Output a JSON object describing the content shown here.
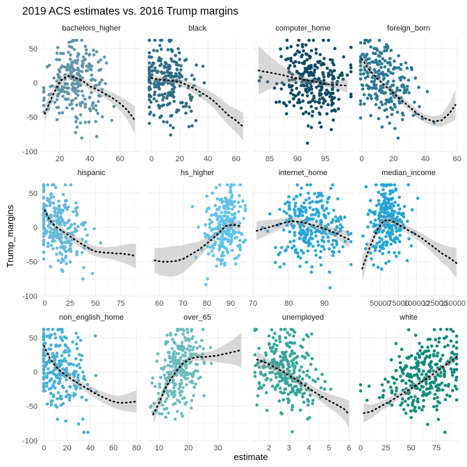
{
  "chart_data": {
    "type": "scatter",
    "title": "2019 ACS estimates vs. 2016 Trump margins",
    "xlabel": "estimate",
    "ylabel": "Trump_margins",
    "ylim": [
      -100,
      65
    ],
    "yticks": [
      -100,
      -50,
      0,
      50
    ],
    "layout": "facet grid 4 columns x 3 rows",
    "grid": true,
    "smooth": "loess curve (dotted black) with grey confidence band",
    "panels": [
      {
        "name": "bachelors_higher",
        "color": "#5f95ab",
        "xlim": [
          8,
          74
        ],
        "xticks": [
          20,
          40,
          60
        ],
        "trend": [
          [
            10,
            -45
          ],
          [
            15,
            -20
          ],
          [
            20,
            2
          ],
          [
            25,
            10
          ],
          [
            30,
            8
          ],
          [
            35,
            3
          ],
          [
            40,
            -5
          ],
          [
            45,
            -10
          ],
          [
            50,
            -16
          ],
          [
            55,
            -22
          ],
          [
            60,
            -30
          ],
          [
            65,
            -40
          ],
          [
            70,
            -55
          ]
        ],
        "band": [
          12,
          10,
          6,
          5,
          5,
          5,
          5,
          5,
          6,
          8,
          10,
          14,
          20
        ],
        "cloud": {
          "center": [
            30,
            8
          ],
          "spread": [
            10,
            28
          ],
          "n": 240
        }
      },
      {
        "name": "black",
        "color": "#2d6e88",
        "xlim": [
          -3,
          68
        ],
        "xticks": [
          0,
          20,
          40,
          60
        ],
        "trend": [
          [
            0,
            7
          ],
          [
            5,
            5
          ],
          [
            10,
            4
          ],
          [
            15,
            3
          ],
          [
            20,
            1
          ],
          [
            25,
            -3
          ],
          [
            30,
            -8
          ],
          [
            35,
            -14
          ],
          [
            40,
            -20
          ],
          [
            45,
            -28
          ],
          [
            50,
            -38
          ],
          [
            55,
            -48
          ],
          [
            60,
            -55
          ],
          [
            65,
            -64
          ]
        ],
        "band": [
          5,
          4,
          4,
          4,
          5,
          6,
          7,
          8,
          9,
          11,
          13,
          15,
          17,
          20
        ],
        "cloud": {
          "center": [
            10,
            5
          ],
          "spread": [
            10,
            30
          ],
          "n": 230
        }
      },
      {
        "name": "computer_home",
        "color": "#0c4a63",
        "xlim": [
          82,
          100
        ],
        "xticks": [
          85,
          90,
          95
        ],
        "trend": [
          [
            83,
            18
          ],
          [
            85,
            15
          ],
          [
            87,
            12
          ],
          [
            89,
            8
          ],
          [
            91,
            5
          ],
          [
            93,
            2
          ],
          [
            95,
            -2
          ],
          [
            97,
            -3
          ],
          [
            99,
            -4
          ]
        ],
        "band": [
          35,
          24,
          14,
          8,
          5,
          4,
          4,
          6,
          10
        ],
        "cloud": {
          "center": [
            92.5,
            2
          ],
          "spread": [
            3,
            30
          ],
          "n": 280
        }
      },
      {
        "name": "foreign_born",
        "color": "#2a7896",
        "xlim": [
          -2,
          61
        ],
        "xticks": [
          0,
          20,
          40,
          60
        ],
        "trend": [
          [
            0,
            35
          ],
          [
            5,
            18
          ],
          [
            10,
            6
          ],
          [
            15,
            -5
          ],
          [
            20,
            -15
          ],
          [
            25,
            -25
          ],
          [
            30,
            -35
          ],
          [
            35,
            -45
          ],
          [
            40,
            -52
          ],
          [
            45,
            -56
          ],
          [
            50,
            -55
          ],
          [
            55,
            -45
          ],
          [
            59,
            -32
          ]
        ],
        "band": [
          8,
          5,
          4,
          4,
          5,
          5,
          6,
          6,
          6,
          7,
          9,
          14,
          22
        ],
        "cloud": {
          "center": [
            12,
            10
          ],
          "spread": [
            10,
            28
          ],
          "n": 230
        }
      },
      {
        "name": "hispanic",
        "color": "#66b9dd",
        "xlim": [
          -3,
          95
        ],
        "xticks": [
          0,
          25,
          50,
          75
        ],
        "trend": [
          [
            0,
            25
          ],
          [
            5,
            10
          ],
          [
            10,
            2
          ],
          [
            15,
            -3
          ],
          [
            20,
            -8
          ],
          [
            25,
            -13
          ],
          [
            30,
            -18
          ],
          [
            35,
            -23
          ],
          [
            40,
            -27
          ],
          [
            45,
            -32
          ],
          [
            50,
            -35
          ],
          [
            55,
            -36
          ],
          [
            60,
            -37
          ],
          [
            65,
            -37
          ],
          [
            70,
            -38
          ],
          [
            75,
            -38
          ],
          [
            80,
            -39
          ],
          [
            85,
            -40
          ],
          [
            90,
            -42
          ]
        ],
        "band": [
          6,
          4,
          4,
          4,
          5,
          5,
          6,
          6,
          6,
          7,
          7,
          8,
          8,
          9,
          10,
          12,
          14,
          16,
          18
        ],
        "cloud": {
          "center": [
            12,
            10
          ],
          "spread": [
            14,
            30
          ],
          "n": 250
        }
      },
      {
        "name": "hs_higher",
        "color": "#5ec2eb",
        "xlim": [
          55,
          97
        ],
        "xticks": [
          60,
          70,
          80,
          90
        ],
        "trend": [
          [
            58,
            -48
          ],
          [
            61,
            -50
          ],
          [
            64,
            -50
          ],
          [
            67,
            -49
          ],
          [
            70,
            -46
          ],
          [
            73,
            -40
          ],
          [
            76,
            -34
          ],
          [
            79,
            -26
          ],
          [
            82,
            -18
          ],
          [
            85,
            -8
          ],
          [
            88,
            2
          ],
          [
            91,
            4
          ],
          [
            94,
            2
          ]
        ],
        "band": [
          18,
          20,
          22,
          22,
          20,
          17,
          13,
          9,
          6,
          4,
          4,
          6,
          9
        ],
        "cloud": {
          "center": [
            88,
            5
          ],
          "spread": [
            4,
            30
          ],
          "n": 260
        }
      },
      {
        "name": "internet_home",
        "color": "#2aa6d8",
        "xlim": [
          70,
          98
        ],
        "xticks": [
          70,
          80,
          90
        ],
        "trend": [
          [
            71,
            -5
          ],
          [
            73,
            -2
          ],
          [
            75,
            1
          ],
          [
            77,
            4
          ],
          [
            79,
            7
          ],
          [
            81,
            9
          ],
          [
            83,
            8
          ],
          [
            85,
            6
          ],
          [
            87,
            3
          ],
          [
            89,
            0
          ],
          [
            91,
            -4
          ],
          [
            93,
            -8
          ],
          [
            95,
            -13
          ],
          [
            97,
            -18
          ]
        ],
        "band": [
          14,
          12,
          10,
          8,
          7,
          6,
          5,
          5,
          5,
          5,
          6,
          7,
          9,
          12
        ],
        "cloud": {
          "center": [
            86,
            3
          ],
          "spread": [
            5,
            28
          ],
          "n": 280
        }
      },
      {
        "name": "median_income",
        "color": "#23a4d6",
        "xlim": [
          20000,
          158000
        ],
        "xticks": [
          50000,
          75000,
          100000,
          125000,
          150000
        ],
        "trend": [
          [
            25000,
            -60
          ],
          [
            35000,
            -30
          ],
          [
            45000,
            -5
          ],
          [
            55000,
            10
          ],
          [
            65000,
            10
          ],
          [
            75000,
            4
          ],
          [
            85000,
            -2
          ],
          [
            95000,
            -8
          ],
          [
            105000,
            -14
          ],
          [
            115000,
            -22
          ],
          [
            125000,
            -30
          ],
          [
            135000,
            -38
          ],
          [
            145000,
            -44
          ],
          [
            155000,
            -52
          ]
        ],
        "band": [
          18,
          10,
          6,
          5,
          5,
          5,
          5,
          6,
          7,
          8,
          10,
          13,
          16,
          22
        ],
        "cloud": {
          "center": [
            62000,
            8
          ],
          "spread": [
            14000,
            28
          ],
          "n": 250
        }
      },
      {
        "name": "non_english_home",
        "color": "#48afd4",
        "xlim": [
          -2,
          84
        ],
        "xticks": [
          0,
          20,
          40,
          60,
          80
        ],
        "trend": [
          [
            0,
            38
          ],
          [
            5,
            20
          ],
          [
            10,
            8
          ],
          [
            15,
            0
          ],
          [
            20,
            -6
          ],
          [
            25,
            -12
          ],
          [
            30,
            -17
          ],
          [
            35,
            -22
          ],
          [
            40,
            -27
          ],
          [
            45,
            -32
          ],
          [
            50,
            -36
          ],
          [
            55,
            -40
          ],
          [
            60,
            -43
          ],
          [
            65,
            -45
          ],
          [
            70,
            -45
          ],
          [
            75,
            -44
          ],
          [
            80,
            -43
          ]
        ],
        "band": [
          6,
          4,
          4,
          4,
          5,
          5,
          5,
          6,
          6,
          7,
          8,
          8,
          9,
          10,
          12,
          14,
          16
        ],
        "cloud": {
          "center": [
            12,
            10
          ],
          "spread": [
            12,
            30
          ],
          "n": 250
        }
      },
      {
        "name": "over_65",
        "color": "#6bbcbc",
        "xlim": [
          6,
          40
        ],
        "xticks": [
          10,
          20,
          30
        ],
        "trend": [
          [
            8,
            -62
          ],
          [
            10,
            -45
          ],
          [
            12,
            -25
          ],
          [
            14,
            -10
          ],
          [
            16,
            2
          ],
          [
            18,
            12
          ],
          [
            20,
            18
          ],
          [
            22,
            21
          ],
          [
            24,
            22
          ],
          [
            26,
            22
          ],
          [
            28,
            23
          ],
          [
            30,
            24
          ],
          [
            32,
            26
          ],
          [
            34,
            28
          ],
          [
            36,
            30
          ],
          [
            38,
            32
          ]
        ],
        "band": [
          14,
          9,
          6,
          5,
          4,
          4,
          4,
          5,
          6,
          7,
          8,
          10,
          13,
          16,
          20,
          26
        ],
        "cloud": {
          "center": [
            17,
            5
          ],
          "spread": [
            4,
            28
          ],
          "n": 280
        }
      },
      {
        "name": "unemployed",
        "color": "#36a59a",
        "xlim": [
          1.2,
          6.2
        ],
        "xticks": [
          2,
          3,
          4,
          5,
          6
        ],
        "trend": [
          [
            1.4,
            18
          ],
          [
            1.8,
            14
          ],
          [
            2.2,
            8
          ],
          [
            2.6,
            2
          ],
          [
            3.0,
            -5
          ],
          [
            3.4,
            -12
          ],
          [
            3.8,
            -20
          ],
          [
            4.2,
            -28
          ],
          [
            4.6,
            -35
          ],
          [
            5.0,
            -42
          ],
          [
            5.4,
            -48
          ],
          [
            5.8,
            -55
          ],
          [
            6.0,
            -62
          ]
        ],
        "band": [
          12,
          8,
          6,
          5,
          5,
          5,
          6,
          7,
          8,
          10,
          12,
          16,
          20
        ],
        "cloud": {
          "center": [
            2.8,
            10
          ],
          "spread": [
            0.8,
            28
          ],
          "n": 280
        }
      },
      {
        "name": "white",
        "color": "#0b8a78",
        "xlim": [
          -2,
          97
        ],
        "xticks": [
          0,
          25,
          50,
          75
        ],
        "trend": [
          [
            3,
            -60
          ],
          [
            10,
            -58
          ],
          [
            20,
            -50
          ],
          [
            30,
            -42
          ],
          [
            40,
            -33
          ],
          [
            50,
            -24
          ],
          [
            60,
            -15
          ],
          [
            70,
            -5
          ],
          [
            80,
            6
          ],
          [
            90,
            16
          ],
          [
            95,
            22
          ]
        ],
        "band": [
          14,
          10,
          7,
          6,
          5,
          5,
          4,
          4,
          4,
          5,
          7
        ],
        "cloud": {
          "center": [
            65,
            0
          ],
          "spread": [
            20,
            28
          ],
          "n": 280
        }
      }
    ]
  }
}
